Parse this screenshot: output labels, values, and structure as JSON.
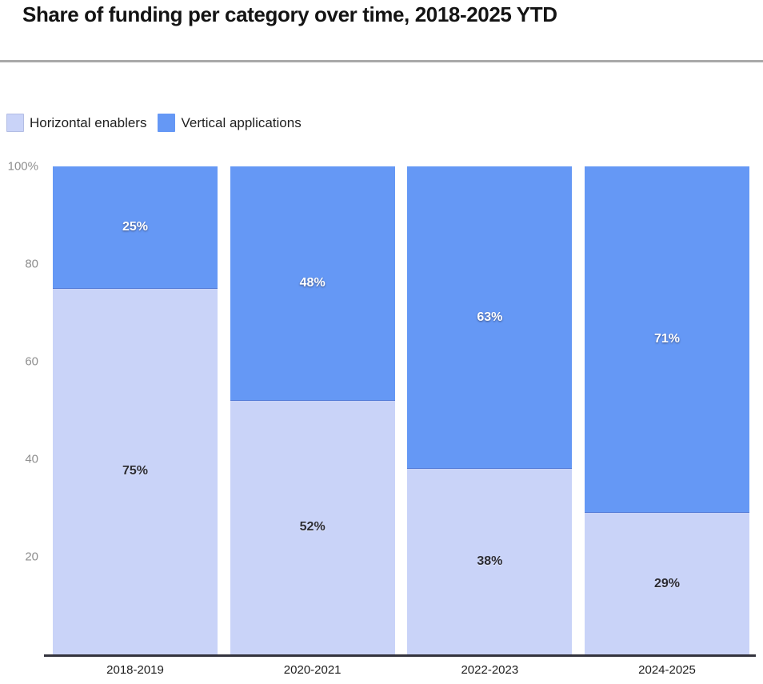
{
  "page": {
    "title": "Share of funding per category over time, 2018-2025 YTD"
  },
  "legend": {
    "items": [
      {
        "label": "Horizontal enablers",
        "color": "#c9d3f8"
      },
      {
        "label": "Vertical applications",
        "color": "#6598f5"
      }
    ]
  },
  "chart_data": {
    "type": "bar",
    "stacked": true,
    "title": "Share of funding per category over time, 2018-2025 YTD",
    "categories": [
      "2018-2019",
      "2020-2021",
      "2022-2023",
      "2024-2025"
    ],
    "series": [
      {
        "name": "Horizontal enablers",
        "color": "#c9d3f8",
        "values": [
          75,
          52,
          38,
          29
        ],
        "labels": [
          "75%",
          "52%",
          "38%",
          "29%"
        ]
      },
      {
        "name": "Vertical applications",
        "color": "#6598f5",
        "values": [
          25,
          48,
          63,
          71
        ],
        "labels": [
          "25%",
          "48%",
          "63%",
          "71%"
        ]
      }
    ],
    "ylabel": "",
    "xlabel": "",
    "ylim": [
      0,
      100
    ],
    "yticks": [
      {
        "value": 100,
        "label": "100%"
      },
      {
        "value": 80,
        "label": "80"
      },
      {
        "value": 60,
        "label": "60"
      },
      {
        "value": 40,
        "label": "40"
      },
      {
        "value": 20,
        "label": "20"
      }
    ],
    "grid": false,
    "legend_position": "top-left",
    "axis_color": "#33333d",
    "tick_label_color": "#8e8e8e"
  }
}
